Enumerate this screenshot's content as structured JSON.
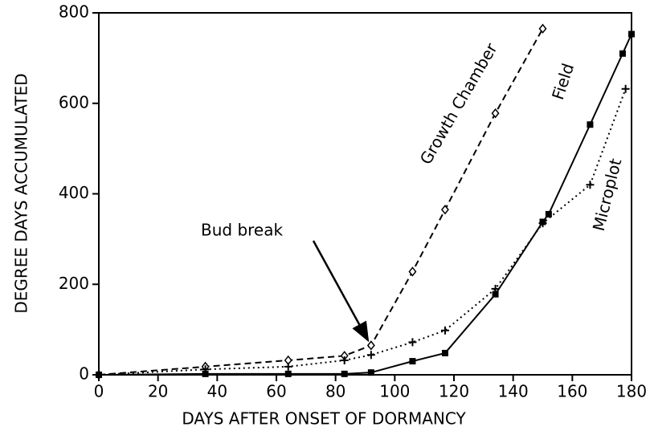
{
  "chart_data": {
    "type": "line",
    "xlabel": "DAYS AFTER ONSET OF DORMANCY",
    "ylabel": "DEGREE DAYS ACCUMULATED",
    "xlim": [
      0,
      180
    ],
    "xticks": [
      0,
      20,
      40,
      60,
      80,
      100,
      120,
      140,
      160,
      180
    ],
    "ylim": [
      0,
      800
    ],
    "yticks": [
      0,
      200,
      400,
      600,
      800
    ],
    "annotations": [
      "Bud break"
    ],
    "series": [
      {
        "name": "Growth Chamber",
        "color": "#000000",
        "line_style": "dashed",
        "marker": "diamond",
        "x": [
          0,
          36,
          64,
          83,
          92,
          106,
          117,
          134,
          150
        ],
        "values": [
          0,
          18,
          32,
          42,
          65,
          228,
          365,
          578,
          765
        ]
      },
      {
        "name": "Field",
        "color": "#000000",
        "line_style": "solid",
        "marker": "square",
        "x": [
          0,
          36,
          64,
          83,
          92,
          106,
          117,
          134,
          150,
          152,
          166,
          177,
          180
        ],
        "values": [
          0,
          2,
          2,
          2,
          5,
          30,
          48,
          178,
          338,
          355,
          553,
          710,
          753
        ]
      },
      {
        "name": "Microplot",
        "color": "#000000",
        "line_style": "dotted",
        "marker": "plus",
        "x": [
          0,
          36,
          64,
          83,
          92,
          106,
          117,
          134,
          150,
          166,
          178
        ],
        "values": [
          0,
          12,
          18,
          32,
          44,
          72,
          98,
          190,
          335,
          420,
          632
        ]
      }
    ]
  }
}
